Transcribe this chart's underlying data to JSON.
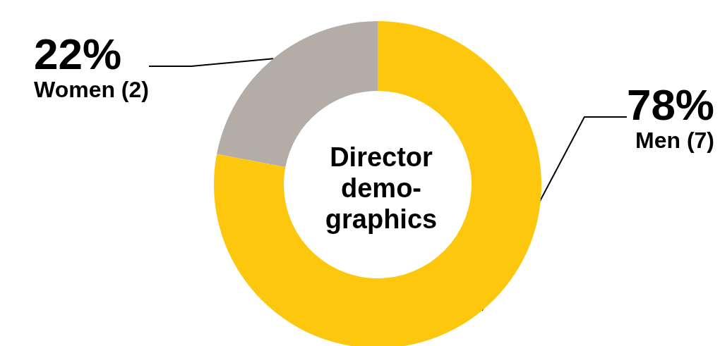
{
  "chart_data": {
    "type": "donut",
    "title": "Director demo-graphics",
    "categories": [
      "Men (7)",
      "Women (2)"
    ],
    "values": [
      78,
      22
    ],
    "value_labels": [
      "78%",
      "22%"
    ],
    "colors": [
      "#fcc70c",
      "#b4aca6"
    ],
    "legend": false
  }
}
